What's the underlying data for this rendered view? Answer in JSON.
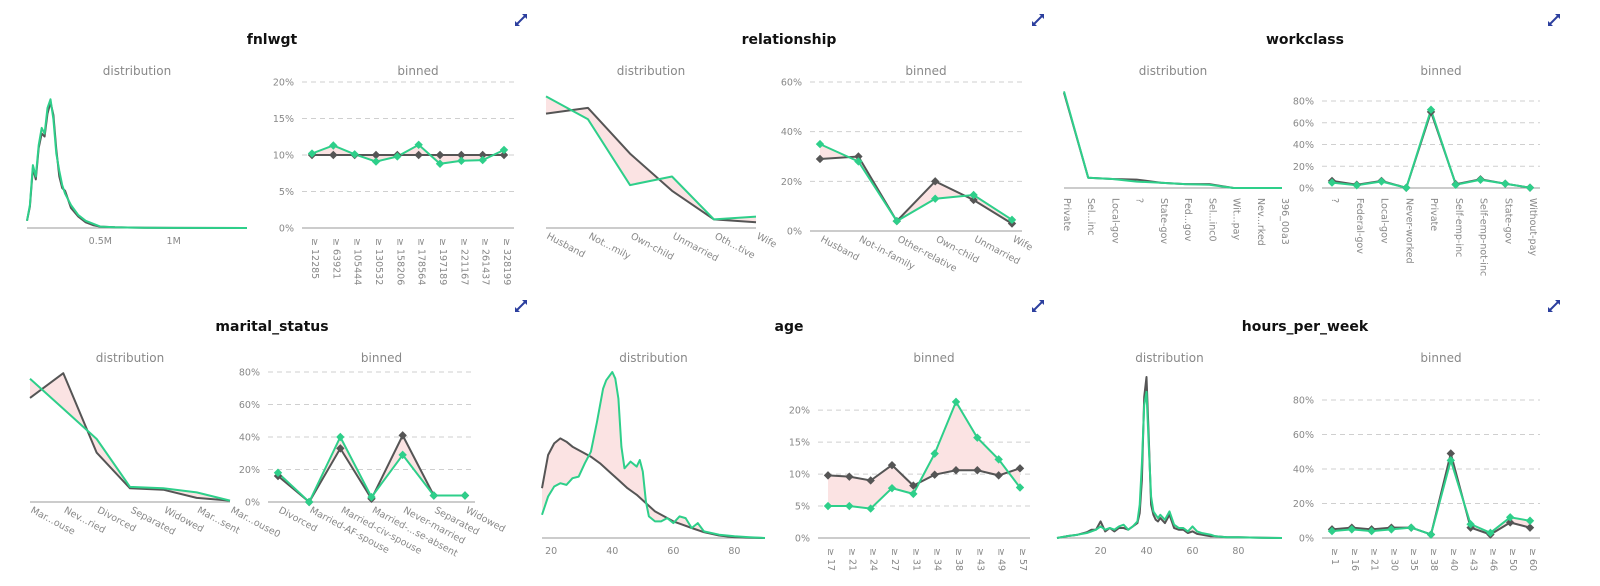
{
  "colors": {
    "reference": "#555555",
    "current": "#2ecf8a",
    "diff_fill": "#fbe3e3",
    "expand_icon": "#2c3f9e"
  },
  "subtitles": {
    "distribution": "distribution",
    "binned": "binned"
  },
  "icons": {
    "expand": "expand-arrows-icon"
  },
  "chart_data": [
    {
      "feature": "fnlwgt",
      "distribution": {
        "type": "area",
        "x_ticks": [
          "0.5M",
          "1M"
        ],
        "x_tick_values": [
          500000,
          1000000
        ],
        "xlim": [
          0,
          1500000
        ],
        "ylim": [
          0,
          1
        ],
        "series": [
          {
            "role": "reference",
            "x": [
              0,
              20000,
              40000,
              60000,
              80000,
              100000,
              120000,
              140000,
              160000,
              180000,
              200000,
              220000,
              240000,
              260000,
              300000,
              350000,
              400000,
              450000,
              500000,
              600000,
              800000,
              1000000,
              1500000
            ],
            "values": [
              0.05,
              0.15,
              0.42,
              0.34,
              0.56,
              0.66,
              0.64,
              0.8,
              0.88,
              0.79,
              0.55,
              0.36,
              0.28,
              0.26,
              0.14,
              0.08,
              0.04,
              0.02,
              0.01,
              0.005,
              0.002,
              0.001,
              0.0
            ]
          },
          {
            "role": "current",
            "x": [
              0,
              20000,
              40000,
              60000,
              80000,
              100000,
              120000,
              140000,
              160000,
              180000,
              200000,
              220000,
              240000,
              260000,
              300000,
              350000,
              400000,
              450000,
              500000,
              600000,
              800000,
              1000000,
              1500000
            ],
            "values": [
              0.05,
              0.16,
              0.44,
              0.36,
              0.58,
              0.7,
              0.66,
              0.84,
              0.9,
              0.76,
              0.52,
              0.4,
              0.3,
              0.24,
              0.16,
              0.09,
              0.05,
              0.03,
              0.01,
              0.005,
              0.002,
              0.001,
              0.0
            ]
          }
        ]
      },
      "binned": {
        "type": "line",
        "categories": [
          "≥ 12285",
          "≥ 63921",
          "≥ 105444",
          "≥ 130532",
          "≥ 158206",
          "≥ 178564",
          "≥ 197189",
          "≥ 221167",
          "≥ 261437",
          "≥ 328199"
        ],
        "y_ticks": [
          "0%",
          "5%",
          "10%",
          "15%",
          "20%"
        ],
        "ylim": [
          0,
          20
        ],
        "series": [
          {
            "role": "reference",
            "values": [
              10,
              10,
              10,
              10,
              10,
              10,
              10,
              10,
              10,
              10
            ]
          },
          {
            "role": "current",
            "values": [
              10.2,
              11.3,
              10.1,
              9.1,
              9.8,
              11.4,
              8.8,
              9.2,
              9.3,
              10.7
            ]
          }
        ]
      }
    },
    {
      "feature": "relationship",
      "distribution": {
        "type": "area",
        "x_ticks": [
          "Husband",
          "Not...mily",
          "Own-child",
          "Unmarried",
          "Oth...tive",
          "Wife"
        ],
        "ylim": [
          0,
          0.5
        ],
        "series": [
          {
            "role": "reference",
            "values": [
              0.4,
              0.42,
              0.26,
              0.13,
              0.03,
              0.02
            ]
          },
          {
            "role": "current",
            "values": [
              0.46,
              0.38,
              0.15,
              0.18,
              0.03,
              0.04
            ]
          }
        ]
      },
      "binned": {
        "type": "line",
        "categories": [
          "Husband",
          "Not-in-family",
          "Other-relative",
          "Own-child",
          "Unmarried",
          "Wife"
        ],
        "y_ticks": [
          "0%",
          "20%",
          "40%",
          "60%"
        ],
        "ylim": [
          0,
          60
        ],
        "series": [
          {
            "role": "reference",
            "values": [
              29,
              30,
              4,
              20,
              12.5,
              3
            ]
          },
          {
            "role": "current",
            "values": [
              35,
              28,
              4,
              13,
              14.5,
              4.5
            ]
          }
        ]
      }
    },
    {
      "feature": "workclass",
      "distribution": {
        "type": "area",
        "x_ticks": [
          "Private",
          "Sel...inc",
          "Local-gov",
          "?",
          "State-gov",
          "Fed...gov",
          "Sel...inc0",
          "Wit...pay",
          "Nev...rked",
          "396_00a3"
        ],
        "ylim": [
          0,
          0.8
        ],
        "series": [
          {
            "role": "reference",
            "values": [
              0.74,
              0.08,
              0.07,
              0.065,
              0.04,
              0.03,
              0.03,
              0.0,
              0.0,
              0.0
            ]
          },
          {
            "role": "current",
            "values": [
              0.75,
              0.08,
              0.07,
              0.05,
              0.04,
              0.03,
              0.025,
              0.0,
              0.0,
              0.0
            ]
          }
        ]
      },
      "binned": {
        "type": "line",
        "categories": [
          "?",
          "Federal-gov",
          "Local-gov",
          "Never-worked",
          "Private",
          "Self-emp-inc",
          "Self-emp-not-inc",
          "State-gov",
          "Without-pay"
        ],
        "y_ticks": [
          "0%",
          "20%",
          "40%",
          "60%",
          "80%"
        ],
        "ylim": [
          0,
          80
        ],
        "series": [
          {
            "role": "reference",
            "values": [
              6.5,
              3,
              6.5,
              0.2,
              70,
              3.5,
              8,
              4,
              0.3
            ]
          },
          {
            "role": "current",
            "values": [
              5,
              2.5,
              6,
              0.2,
              72,
              3,
              7.5,
              4,
              0.3
            ]
          }
        ]
      }
    },
    {
      "feature": "marital_status",
      "distribution": {
        "type": "area",
        "x_ticks": [
          "Mar...ouse",
          "Nev...ried",
          "Divorced",
          "Separated",
          "Widowed",
          "Mar...sent",
          "Mar...ouse0"
        ],
        "ylim": [
          0,
          0.5
        ],
        "series": [
          {
            "role": "reference",
            "values": [
              0.38,
              0.47,
              0.18,
              0.05,
              0.045,
              0.015,
              0.005
            ]
          },
          {
            "role": "current",
            "values": [
              0.45,
              0.34,
              0.23,
              0.055,
              0.05,
              0.035,
              0.005
            ]
          }
        ]
      },
      "binned": {
        "type": "line",
        "categories": [
          "Divorced",
          "Married-AF-spouse",
          "Married-civ-spouse",
          "Married-...se-absent",
          "Never-married",
          "Separated",
          "Widowed"
        ],
        "y_ticks": [
          "0%",
          "20%",
          "40%",
          "60%",
          "80%"
        ],
        "ylim": [
          0,
          80
        ],
        "series": [
          {
            "role": "reference",
            "values": [
              16,
              0,
              33,
              2,
              41,
              4,
              4
            ]
          },
          {
            "role": "current",
            "values": [
              18,
              0,
              40,
              3,
              29,
              4,
              4
            ]
          }
        ]
      }
    },
    {
      "feature": "age",
      "distribution": {
        "type": "area",
        "x_ticks": [
          "20",
          "40",
          "60",
          "80"
        ],
        "x_tick_values": [
          20,
          40,
          60,
          80
        ],
        "xlim": [
          17,
          90
        ],
        "ylim": [
          0,
          1
        ],
        "series": [
          {
            "role": "reference",
            "x": [
              17,
              19,
              21,
              23,
              25,
              27,
              30,
              33,
              36,
              39,
              42,
              45,
              48,
              51,
              54,
              57,
              60,
              63,
              66,
              70,
              75,
              80,
              85,
              90
            ],
            "values": [
              0.3,
              0.5,
              0.57,
              0.6,
              0.58,
              0.55,
              0.52,
              0.49,
              0.45,
              0.4,
              0.35,
              0.3,
              0.26,
              0.21,
              0.16,
              0.13,
              0.1,
              0.08,
              0.06,
              0.035,
              0.015,
              0.005,
              0.002,
              0.0
            ]
          },
          {
            "role": "current",
            "x": [
              17,
              19,
              21,
              23,
              25,
              27,
              29,
              31,
              33,
              35,
              37,
              38,
              40,
              41,
              42,
              43,
              44,
              45,
              46,
              48,
              49,
              50,
              51,
              52,
              54,
              56,
              58,
              60,
              62,
              64,
              66,
              68,
              70,
              75,
              80,
              85,
              90
            ],
            "values": [
              0.14,
              0.25,
              0.31,
              0.33,
              0.32,
              0.36,
              0.37,
              0.45,
              0.52,
              0.7,
              0.9,
              0.95,
              1.0,
              0.96,
              0.84,
              0.55,
              0.42,
              0.44,
              0.46,
              0.43,
              0.47,
              0.4,
              0.22,
              0.13,
              0.1,
              0.1,
              0.12,
              0.09,
              0.13,
              0.12,
              0.06,
              0.09,
              0.04,
              0.02,
              0.01,
              0.004,
              0.0
            ]
          }
        ]
      },
      "binned": {
        "type": "line",
        "categories": [
          "≥ 17",
          "≥ 21",
          "≥ 24",
          "≥ 27",
          "≥ 31",
          "≥ 34",
          "≥ 38",
          "≥ 43",
          "≥ 49",
          "≥ 57"
        ],
        "y_ticks": [
          "0%",
          "5%",
          "10%",
          "15%",
          "20%"
        ],
        "ylim": [
          0,
          23
        ],
        "series": [
          {
            "role": "reference",
            "values": [
              9.8,
              9.6,
              9.0,
              11.4,
              8.2,
              9.9,
              10.6,
              10.6,
              9.8,
              10.9
            ]
          },
          {
            "role": "current",
            "values": [
              5.0,
              5.0,
              4.6,
              7.8,
              6.9,
              13.2,
              21.3,
              15.7,
              12.3,
              7.9
            ]
          }
        ]
      }
    },
    {
      "feature": "hours_per_week",
      "distribution": {
        "type": "area",
        "x_ticks": [
          "20",
          "40",
          "60",
          "80"
        ],
        "x_tick_values": [
          20,
          40,
          60,
          80
        ],
        "xlim": [
          1,
          99
        ],
        "ylim": [
          0,
          1
        ],
        "series": [
          {
            "role": "reference",
            "x": [
              1,
              5,
              10,
              14,
              16,
              18,
              20,
              22,
              24,
              26,
              28,
              30,
              32,
              34,
              36,
              37,
              38,
              39,
              40,
              41,
              42,
              43,
              44,
              45,
              46,
              48,
              50,
              52,
              54,
              56,
              58,
              60,
              62,
              64,
              66,
              68,
              70,
              75,
              80,
              90,
              99
            ],
            "values": [
              0.0,
              0.01,
              0.02,
              0.035,
              0.05,
              0.05,
              0.1,
              0.04,
              0.06,
              0.04,
              0.06,
              0.06,
              0.05,
              0.07,
              0.09,
              0.15,
              0.35,
              0.85,
              0.97,
              0.6,
              0.2,
              0.14,
              0.11,
              0.1,
              0.12,
              0.09,
              0.14,
              0.06,
              0.05,
              0.05,
              0.03,
              0.04,
              0.025,
              0.02,
              0.015,
              0.01,
              0.01,
              0.005,
              0.004,
              0.002,
              0.0
            ]
          },
          {
            "role": "current",
            "x": [
              1,
              5,
              10,
              14,
              16,
              18,
              20,
              22,
              24,
              26,
              28,
              30,
              32,
              34,
              36,
              37,
              38,
              39,
              40,
              41,
              42,
              43,
              44,
              45,
              46,
              48,
              50,
              52,
              54,
              56,
              58,
              60,
              62,
              64,
              66,
              68,
              70,
              75,
              80,
              90,
              99
            ],
            "values": [
              0.0,
              0.01,
              0.02,
              0.03,
              0.04,
              0.05,
              0.07,
              0.05,
              0.06,
              0.05,
              0.07,
              0.08,
              0.05,
              0.07,
              0.1,
              0.2,
              0.45,
              0.8,
              0.88,
              0.55,
              0.25,
              0.16,
              0.14,
              0.12,
              0.14,
              0.11,
              0.16,
              0.08,
              0.06,
              0.06,
              0.04,
              0.07,
              0.04,
              0.03,
              0.025,
              0.02,
              0.01,
              0.005,
              0.004,
              0.002,
              0.0
            ]
          }
        ]
      },
      "binned": {
        "type": "line",
        "categories": [
          "≥ 1",
          "≥ 16",
          "≥ 21",
          "≥ 30",
          "≥ 35",
          "≥ 38",
          "≥ 40",
          "≥ 43",
          "≥ 46",
          "≥ 50",
          "≥ 60"
        ],
        "y_ticks": [
          "0%",
          "20%",
          "40%",
          "60%",
          "80%"
        ],
        "ylim": [
          0,
          80
        ],
        "series": [
          {
            "role": "reference",
            "values": [
              5,
              6,
              5,
              6,
              6,
              2,
              49,
              6,
              2,
              9,
              6
            ]
          },
          {
            "role": "current",
            "values": [
              4,
              5,
              4,
              5,
              6,
              2,
              45,
              8,
              3,
              12,
              10
            ]
          }
        ]
      }
    }
  ]
}
